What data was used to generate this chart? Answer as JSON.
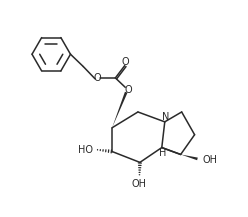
{
  "background_color": "#ffffff",
  "line_color": "#2a2a2a",
  "line_width": 1.1,
  "font_size": 7.0,
  "figsize": [
    2.48,
    2.17
  ],
  "dpi": 100,
  "xlim": [
    0,
    10
  ],
  "ylim": [
    0,
    8.7
  ]
}
